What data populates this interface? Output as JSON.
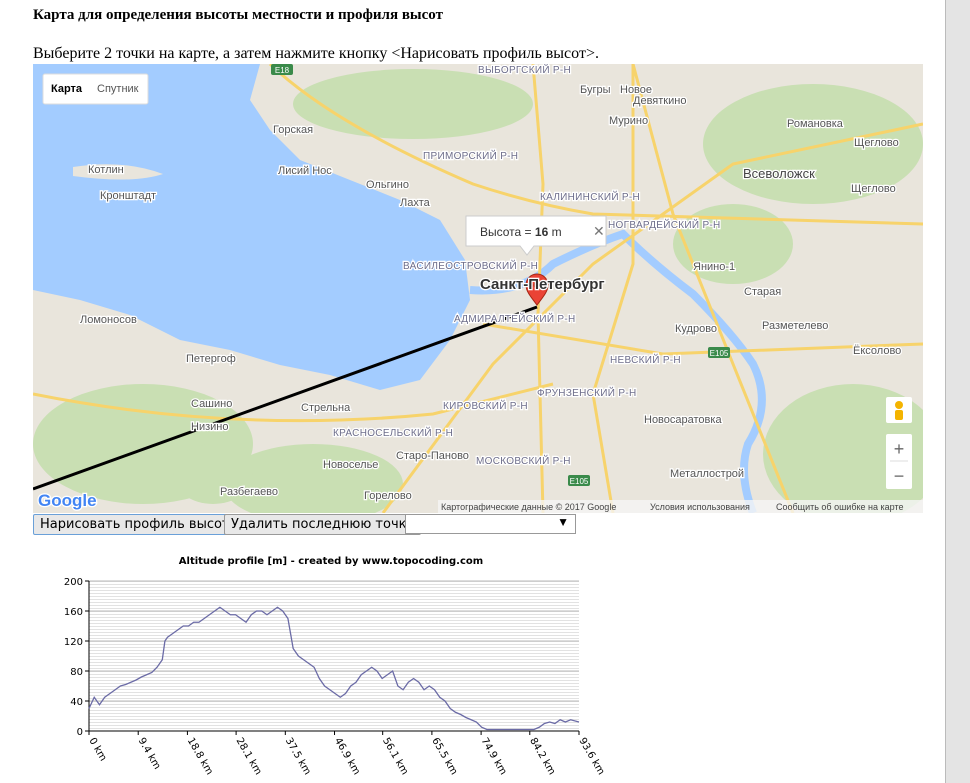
{
  "header": {
    "title": "Карта для определения высоты местности и профиля высот",
    "instruction": "Выберите 2 точки на карте, а затем нажмите кнопку <Нарисовать профиль высот>."
  },
  "map": {
    "type_buttons": [
      "Карта",
      "Спутник"
    ],
    "labels": [
      "ВЫБОРГСКИЙ Р-Н",
      "Бугры",
      "Новое",
      "Девяткино",
      "Мурино",
      "Горская",
      "Романовка",
      "ПРИМОРСКИЙ Р-Н",
      "Щеглово",
      "Котлин",
      "Лисий Нос",
      "Всеволожск",
      "Ольгино",
      "КАЛИНИНСКИЙ Р-Н",
      "Щеглово",
      "Кронштадт",
      "Лахта",
      "НОГВАРДЕЙСКИЙ Р-Н",
      "ВАСИЛЕОСТРОВСКИЙ Р-Н",
      "Янино-1",
      "Санкт-Петербург",
      "Старая",
      "Ломоносов",
      "АДМИРАЛТЕЙСКИЙ Р-Н",
      "Кудрово",
      "Разметелево",
      "Петергоф",
      "НЕВСКИЙ Р-Н",
      "Ёксолово",
      "Сашино",
      "Стрельна",
      "КИРОВСКИЙ Р-Н",
      "ФРУНЗЕНСКИЙ Р-Н",
      "Низино",
      "Новосаратовка",
      "КРАСНОСЕЛЬСКИЙ Р-Н",
      "Старо-Паново",
      "Новоселье",
      "МОСКОВСКИЙ Р-Н",
      "Металлострой",
      "Разбегаево",
      "Горелово"
    ],
    "roads": [
      "E18",
      "E105",
      "E105"
    ],
    "infowindow": {
      "label": "Высота =",
      "value": 16,
      "unit": "m"
    },
    "zoom": [
      "+",
      "−"
    ],
    "logo": "Google",
    "attribution": [
      "Картографические данные © 2017 Google",
      "Условия использования",
      "Сообщить об ошибке на карте"
    ]
  },
  "controls": {
    "buttons": [
      "Нарисовать профиль высот",
      "Удалить последнюю точку"
    ]
  },
  "chart_data": {
    "type": "line",
    "title": "Altitude profile [m] - created by www.topocoding.com",
    "x": [
      0,
      1,
      2,
      3,
      4,
      5,
      6,
      7,
      8,
      9,
      10,
      11,
      12,
      13,
      14,
      14.5,
      15,
      16,
      17,
      18,
      19,
      20,
      21,
      22,
      23,
      24,
      25,
      26,
      27,
      28,
      29,
      30,
      31,
      32,
      33,
      34,
      35,
      36,
      37,
      38,
      39,
      40,
      41,
      42,
      43,
      44,
      45,
      46,
      47,
      48,
      49,
      50,
      51,
      52,
      53,
      54,
      55,
      56,
      57,
      58,
      59,
      60,
      61,
      62,
      63,
      64,
      65,
      66,
      67,
      68,
      69,
      70,
      71,
      72,
      73,
      74,
      75,
      76,
      77,
      80,
      85,
      86,
      87,
      88,
      89,
      90,
      91,
      92,
      93.6
    ],
    "series": [
      {
        "name": "Altitude",
        "color": "#6b6ba6",
        "values": [
          30,
          45,
          35,
          45,
          50,
          55,
          60,
          62,
          65,
          68,
          72,
          75,
          78,
          85,
          95,
          120,
          125,
          130,
          135,
          140,
          140,
          145,
          145,
          150,
          155,
          160,
          165,
          160,
          155,
          155,
          150,
          145,
          155,
          160,
          160,
          155,
          160,
          165,
          160,
          150,
          110,
          100,
          95,
          90,
          85,
          70,
          60,
          55,
          50,
          45,
          50,
          60,
          65,
          75,
          80,
          85,
          80,
          70,
          75,
          80,
          60,
          55,
          65,
          70,
          65,
          55,
          60,
          55,
          45,
          40,
          30,
          25,
          22,
          18,
          15,
          12,
          5,
          2,
          2,
          2,
          2,
          5,
          10,
          12,
          10,
          15,
          12,
          15,
          12
        ]
      }
    ],
    "xlim": [
      0,
      93.6
    ],
    "ylim": [
      0,
      200
    ],
    "xticks": [
      {
        "value": 0,
        "label": "0 km"
      },
      {
        "value": 9.4,
        "label": "9.4 km"
      },
      {
        "value": 18.8,
        "label": "18.8 km"
      },
      {
        "value": 28.1,
        "label": "28.1 km"
      },
      {
        "value": 37.5,
        "label": "37.5 km"
      },
      {
        "value": 46.9,
        "label": "46.9 km"
      },
      {
        "value": 56.1,
        "label": "56.1 km"
      },
      {
        "value": 65.5,
        "label": "65.5 km"
      },
      {
        "value": 74.9,
        "label": "74.9 km"
      },
      {
        "value": 84.2,
        "label": "84.2 km"
      },
      {
        "value": 93.6,
        "label": "93.6 km"
      }
    ],
    "yticks": [
      0,
      40,
      80,
      120,
      160,
      200
    ],
    "grid": true
  }
}
